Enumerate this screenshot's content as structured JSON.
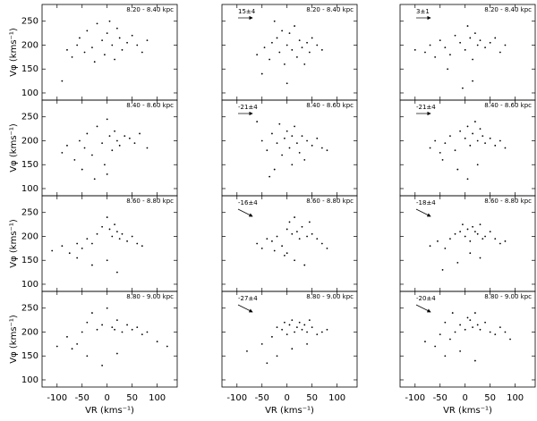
{
  "chart_data": [
    {
      "type": "scatter",
      "annotation": "8.20 - 8.40 kpc",
      "ylabel": "Vφ (kms⁻¹)",
      "xlim": [
        -130,
        140
      ],
      "ylim": [
        85,
        285
      ],
      "xticks": [
        -100,
        -50,
        0,
        50,
        100
      ],
      "yticks": [
        100,
        150,
        200,
        250
      ],
      "x": [
        -80,
        -70,
        -60,
        -55,
        -45,
        -40,
        -30,
        -25,
        -20,
        -10,
        -5,
        0,
        5,
        10,
        15,
        20,
        25,
        30,
        40,
        50,
        60,
        70,
        80,
        -90
      ],
      "y": [
        190,
        175,
        200,
        215,
        185,
        230,
        195,
        165,
        245,
        210,
        180,
        225,
        250,
        200,
        170,
        235,
        215,
        190,
        205,
        220,
        200,
        185,
        210,
        125
      ]
    },
    {
      "type": "scatter",
      "annotation": "8.20 - 8.40 kpc",
      "offset": "15±4",
      "xlim": [
        -130,
        140
      ],
      "ylim": [
        85,
        285
      ],
      "xticks": [
        -100,
        -50,
        0,
        50,
        100
      ],
      "yticks": [
        100,
        150,
        200,
        250
      ],
      "x": [
        -60,
        -45,
        -35,
        -30,
        -20,
        -15,
        -10,
        -5,
        0,
        5,
        10,
        15,
        20,
        25,
        30,
        40,
        45,
        50,
        60,
        70,
        -50,
        -25,
        35,
        0
      ],
      "y": [
        180,
        195,
        170,
        205,
        215,
        185,
        230,
        160,
        200,
        225,
        190,
        240,
        175,
        210,
        195,
        205,
        185,
        215,
        200,
        190,
        140,
        250,
        160,
        120
      ]
    },
    {
      "type": "scatter",
      "annotation": "8.20 - 8.40 kpc",
      "offset": "3±1",
      "xlim": [
        -130,
        140
      ],
      "ylim": [
        85,
        285
      ],
      "xticks": [
        -100,
        -50,
        0,
        50,
        100
      ],
      "yticks": [
        100,
        150,
        200,
        250
      ],
      "x": [
        -100,
        -80,
        -70,
        -60,
        -50,
        -40,
        -30,
        -20,
        -10,
        0,
        5,
        10,
        15,
        20,
        25,
        30,
        40,
        50,
        60,
        70,
        80,
        -5,
        15,
        -35
      ],
      "y": [
        190,
        185,
        200,
        175,
        210,
        195,
        180,
        220,
        205,
        190,
        240,
        215,
        170,
        225,
        200,
        210,
        195,
        205,
        215,
        185,
        200,
        110,
        125,
        150
      ]
    },
    {
      "type": "scatter",
      "annotation": "8.40 - 8.60 kpc",
      "ylabel": "Vφ (kms⁻¹)",
      "xlim": [
        -130,
        140
      ],
      "ylim": [
        85,
        285
      ],
      "xticks": [
        -100,
        -50,
        0,
        50,
        100
      ],
      "yticks": [
        100,
        150,
        200,
        250
      ],
      "x": [
        -90,
        -80,
        -65,
        -55,
        -45,
        -40,
        -30,
        -20,
        -10,
        -5,
        0,
        5,
        10,
        15,
        20,
        25,
        35,
        45,
        55,
        65,
        80,
        -25,
        0,
        -50
      ],
      "y": [
        175,
        190,
        160,
        200,
        185,
        215,
        170,
        230,
        195,
        150,
        245,
        210,
        180,
        220,
        200,
        190,
        210,
        205,
        195,
        215,
        185,
        120,
        130,
        140
      ]
    },
    {
      "type": "scatter",
      "annotation": "8.40 - 8.60 kpc",
      "offset": "-21±4",
      "xlim": [
        -130,
        140
      ],
      "ylim": [
        85,
        285
      ],
      "xticks": [
        -100,
        -50,
        0,
        50,
        100
      ],
      "yticks": [
        100,
        150,
        200,
        250
      ],
      "x": [
        -50,
        -40,
        -30,
        -20,
        -15,
        -10,
        -5,
        0,
        5,
        10,
        15,
        20,
        25,
        30,
        40,
        50,
        60,
        70,
        80,
        -60,
        -25,
        10,
        35,
        -35
      ],
      "y": [
        200,
        180,
        215,
        195,
        235,
        170,
        205,
        220,
        185,
        210,
        230,
        195,
        175,
        210,
        200,
        190,
        205,
        185,
        180,
        240,
        140,
        150,
        160,
        125
      ]
    },
    {
      "type": "scatter",
      "annotation": "8.40 - 8.60 kpc",
      "offset": "-21±4",
      "xlim": [
        -130,
        140
      ],
      "ylim": [
        85,
        285
      ],
      "xticks": [
        -100,
        -50,
        0,
        50,
        100
      ],
      "yticks": [
        100,
        150,
        200,
        250
      ],
      "x": [
        -70,
        -60,
        -50,
        -40,
        -30,
        -20,
        -10,
        0,
        5,
        10,
        15,
        20,
        25,
        30,
        35,
        40,
        50,
        60,
        70,
        80,
        -15,
        5,
        25,
        -45
      ],
      "y": [
        185,
        200,
        175,
        195,
        210,
        180,
        220,
        205,
        230,
        190,
        215,
        240,
        200,
        225,
        210,
        195,
        205,
        190,
        200,
        185,
        140,
        120,
        150,
        160
      ]
    },
    {
      "type": "scatter",
      "annotation": "8.60 - 8.80 kpc",
      "ylabel": "Vφ (kms⁻¹)",
      "xlim": [
        -130,
        140
      ],
      "ylim": [
        85,
        285
      ],
      "xticks": [
        -100,
        -50,
        0,
        50,
        100
      ],
      "yticks": [
        100,
        150,
        200,
        250
      ],
      "x": [
        -110,
        -90,
        -75,
        -60,
        -50,
        -40,
        -30,
        -20,
        -10,
        0,
        5,
        10,
        15,
        20,
        25,
        30,
        40,
        50,
        60,
        70,
        -30,
        0,
        20,
        -60
      ],
      "y": [
        170,
        180,
        165,
        185,
        175,
        195,
        185,
        205,
        220,
        240,
        215,
        200,
        225,
        210,
        195,
        205,
        190,
        200,
        185,
        180,
        140,
        150,
        125,
        155
      ]
    },
    {
      "type": "scatter",
      "annotation": "8.60 - 8.80 kpc",
      "offset": "-16±4",
      "xlim": [
        -130,
        140
      ],
      "ylim": [
        85,
        285
      ],
      "xticks": [
        -100,
        -50,
        0,
        50,
        100
      ],
      "yticks": [
        100,
        150,
        200,
        250
      ],
      "x": [
        -60,
        -50,
        -40,
        -30,
        -20,
        -10,
        0,
        5,
        10,
        15,
        20,
        25,
        30,
        40,
        50,
        60,
        70,
        80,
        -5,
        15,
        35,
        -25,
        45,
        0
      ],
      "y": [
        185,
        175,
        195,
        190,
        200,
        180,
        215,
        230,
        205,
        240,
        210,
        195,
        220,
        200,
        205,
        195,
        185,
        175,
        160,
        150,
        140,
        170,
        230,
        165
      ]
    },
    {
      "type": "scatter",
      "annotation": "8.60 - 8.80 kpc",
      "offset": "-18±4",
      "xlim": [
        -130,
        140
      ],
      "ylim": [
        85,
        285
      ],
      "xticks": [
        -100,
        -50,
        0,
        50,
        100
      ],
      "yticks": [
        100,
        150,
        200,
        250
      ],
      "x": [
        -70,
        -55,
        -40,
        -30,
        -20,
        -10,
        -5,
        0,
        5,
        10,
        15,
        20,
        25,
        30,
        35,
        40,
        50,
        60,
        70,
        80,
        -15,
        10,
        30,
        -45
      ],
      "y": [
        180,
        190,
        175,
        195,
        205,
        210,
        225,
        200,
        215,
        190,
        220,
        210,
        205,
        225,
        195,
        200,
        210,
        195,
        185,
        190,
        145,
        165,
        155,
        130
      ]
    },
    {
      "type": "scatter",
      "annotation": "8.80 - 9.00 kpc",
      "ylabel": "Vφ (kms⁻¹)",
      "xlabel": "VR (kms⁻¹)",
      "xlim": [
        -130,
        140
      ],
      "ylim": [
        85,
        285
      ],
      "xticks": [
        -100,
        -50,
        0,
        50,
        100
      ],
      "yticks": [
        100,
        150,
        200,
        250
      ],
      "x": [
        -100,
        -80,
        -60,
        -50,
        -40,
        -30,
        -20,
        -10,
        0,
        10,
        15,
        20,
        30,
        40,
        50,
        60,
        70,
        80,
        100,
        120,
        -40,
        -10,
        20,
        -70
      ],
      "y": [
        170,
        190,
        175,
        200,
        220,
        240,
        205,
        215,
        250,
        210,
        205,
        225,
        200,
        215,
        205,
        210,
        195,
        200,
        180,
        170,
        150,
        130,
        155,
        165
      ]
    },
    {
      "type": "scatter",
      "annotation": "8.80 - 9.00 kpc",
      "offset": "-27±4",
      "xlabel": "VR (kms⁻¹)",
      "xlim": [
        -130,
        140
      ],
      "ylim": [
        85,
        285
      ],
      "xticks": [
        -100,
        -50,
        0,
        50,
        100
      ],
      "yticks": [
        100,
        150,
        200,
        250
      ],
      "x": [
        -80,
        -50,
        -30,
        -20,
        -10,
        -5,
        0,
        5,
        10,
        15,
        20,
        25,
        30,
        35,
        40,
        45,
        50,
        60,
        70,
        80,
        -20,
        10,
        40,
        -40
      ],
      "y": [
        160,
        175,
        190,
        210,
        205,
        220,
        195,
        215,
        225,
        200,
        210,
        220,
        205,
        215,
        200,
        225,
        210,
        195,
        200,
        205,
        150,
        165,
        175,
        135
      ]
    },
    {
      "type": "scatter",
      "annotation": "8.80 - 9.00 kpc",
      "offset": "-20±4",
      "xlabel": "VR (kms⁻¹)",
      "xlim": [
        -130,
        140
      ],
      "ylim": [
        85,
        285
      ],
      "xticks": [
        -100,
        -50,
        0,
        50,
        100
      ],
      "yticks": [
        100,
        150,
        200,
        250
      ],
      "x": [
        -80,
        -60,
        -50,
        -40,
        -30,
        -20,
        -10,
        0,
        5,
        10,
        15,
        20,
        25,
        30,
        40,
        50,
        60,
        70,
        80,
        90,
        -40,
        -10,
        20,
        -25
      ],
      "y": [
        180,
        170,
        195,
        220,
        185,
        200,
        215,
        205,
        230,
        225,
        210,
        240,
        215,
        205,
        220,
        200,
        195,
        210,
        200,
        185,
        150,
        160,
        140,
        240
      ]
    }
  ]
}
